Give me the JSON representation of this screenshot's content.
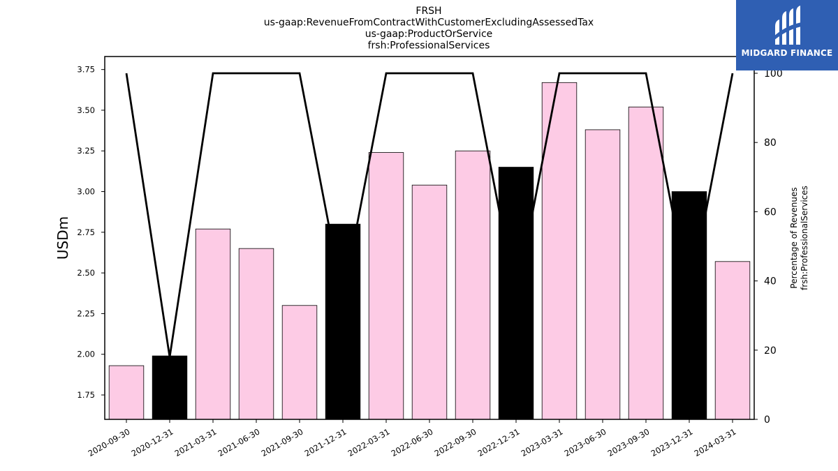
{
  "chart_data": {
    "type": "bar",
    "title_lines": [
      "FRSH",
      "us-gaap:RevenueFromContractWithCustomerExcludingAssessedTax",
      "us-gaap:ProductOrService",
      "frsh:ProfessionalServices"
    ],
    "categories": [
      "2020-09-30",
      "2020-12-31",
      "2021-03-31",
      "2021-06-30",
      "2021-09-30",
      "2021-12-31",
      "2022-03-31",
      "2022-06-30",
      "2022-09-30",
      "2022-12-31",
      "2023-03-31",
      "2023-06-30",
      "2023-09-30",
      "2023-12-31",
      "2024-03-31"
    ],
    "series": [
      {
        "values": [
          1.93,
          1.99,
          2.77,
          2.65,
          2.3,
          2.8,
          3.24,
          3.04,
          3.25,
          3.15,
          3.67,
          3.38,
          3.52,
          3.0,
          2.57
        ],
        "highlight": [
          false,
          true,
          false,
          false,
          false,
          true,
          false,
          false,
          false,
          true,
          false,
          false,
          false,
          true,
          false
        ],
        "color": "#fdcbe5",
        "highlight_color": "#000000",
        "axis": "left"
      },
      {
        "values": [
          100,
          18,
          100,
          100,
          100,
          35,
          100,
          100,
          100,
          35,
          100,
          100,
          100,
          35,
          100
        ],
        "color": "#000000",
        "type": "line",
        "axis": "right"
      }
    ],
    "ylabel": "USDm",
    "y2label_lines": [
      "Percentage of Revenues",
      "frsh:ProfessionalServices"
    ],
    "ylim": [
      1.6,
      3.83
    ],
    "yticks": [
      "1.75",
      "2.00",
      "2.25",
      "2.50",
      "2.75",
      "3.00",
      "3.25",
      "3.50",
      "3.75"
    ],
    "y2lim": [
      0,
      100
    ],
    "y2ticks": [
      "0",
      "20",
      "40",
      "60",
      "80",
      "100"
    ],
    "grid": false
  },
  "logo": {
    "text": "MIDGARD FINANCE",
    "icon": "midgard-logo-icon",
    "background": "#2f5fb3"
  }
}
